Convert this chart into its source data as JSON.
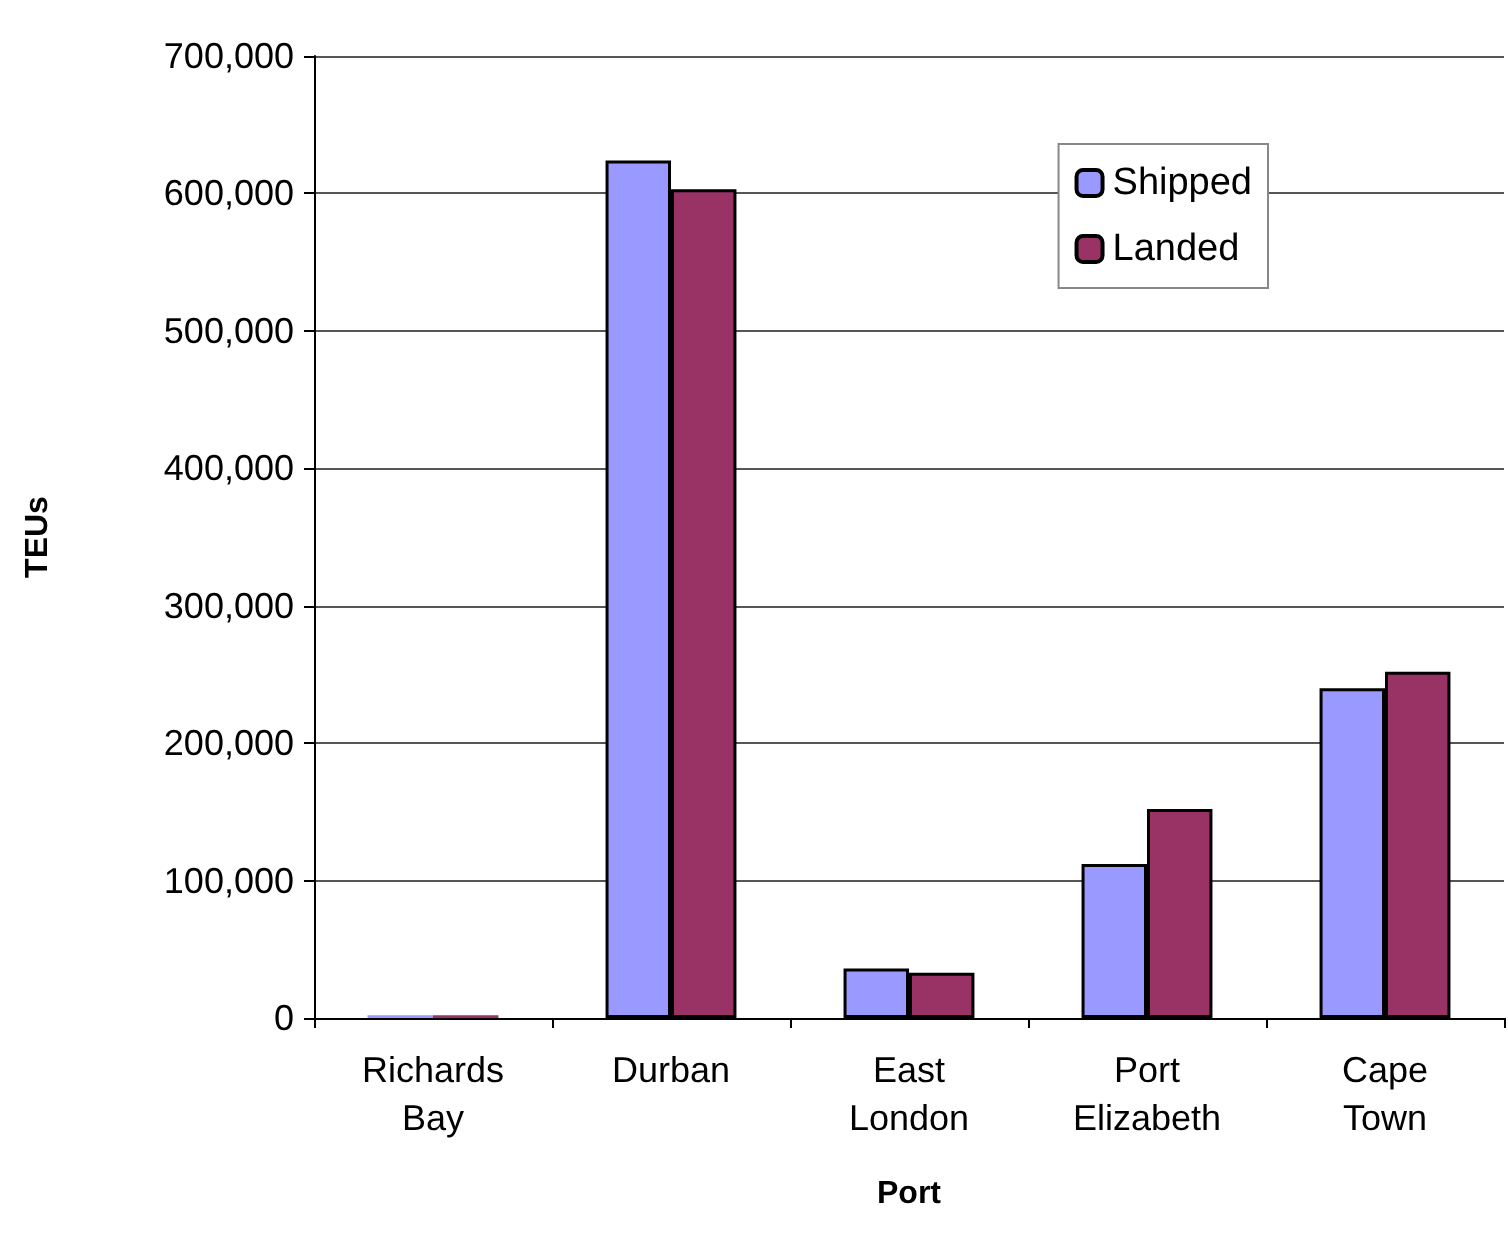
{
  "chart_data": {
    "type": "bar",
    "xlabel": "Port",
    "ylabel": "TEUs",
    "categories": [
      "Richards Bay",
      "Durban",
      "East London",
      "Port Elizabeth",
      "Cape Town"
    ],
    "series": [
      {
        "name": "Shipped",
        "color": "#9999ff",
        "values": [
          2000,
          624000,
          36000,
          112000,
          240000
        ]
      },
      {
        "name": "Landed",
        "color": "#993366",
        "values": [
          2000,
          603000,
          33000,
          152000,
          252000
        ]
      }
    ],
    "ylim": [
      0,
      700000
    ],
    "yticks": [
      0,
      {
        "value": 100000,
        "label": "100,000"
      },
      {
        "value": 200000,
        "label": "200,000"
      },
      {
        "value": 300000,
        "label": "300,000"
      },
      {
        "value": 400000,
        "label": "400,000"
      },
      {
        "value": 500000,
        "label": "500,000"
      },
      {
        "value": 600000,
        "label": "600,000"
      },
      {
        "value": 700000,
        "label": "700,000"
      }
    ],
    "grid": "y",
    "legend": "top right"
  }
}
